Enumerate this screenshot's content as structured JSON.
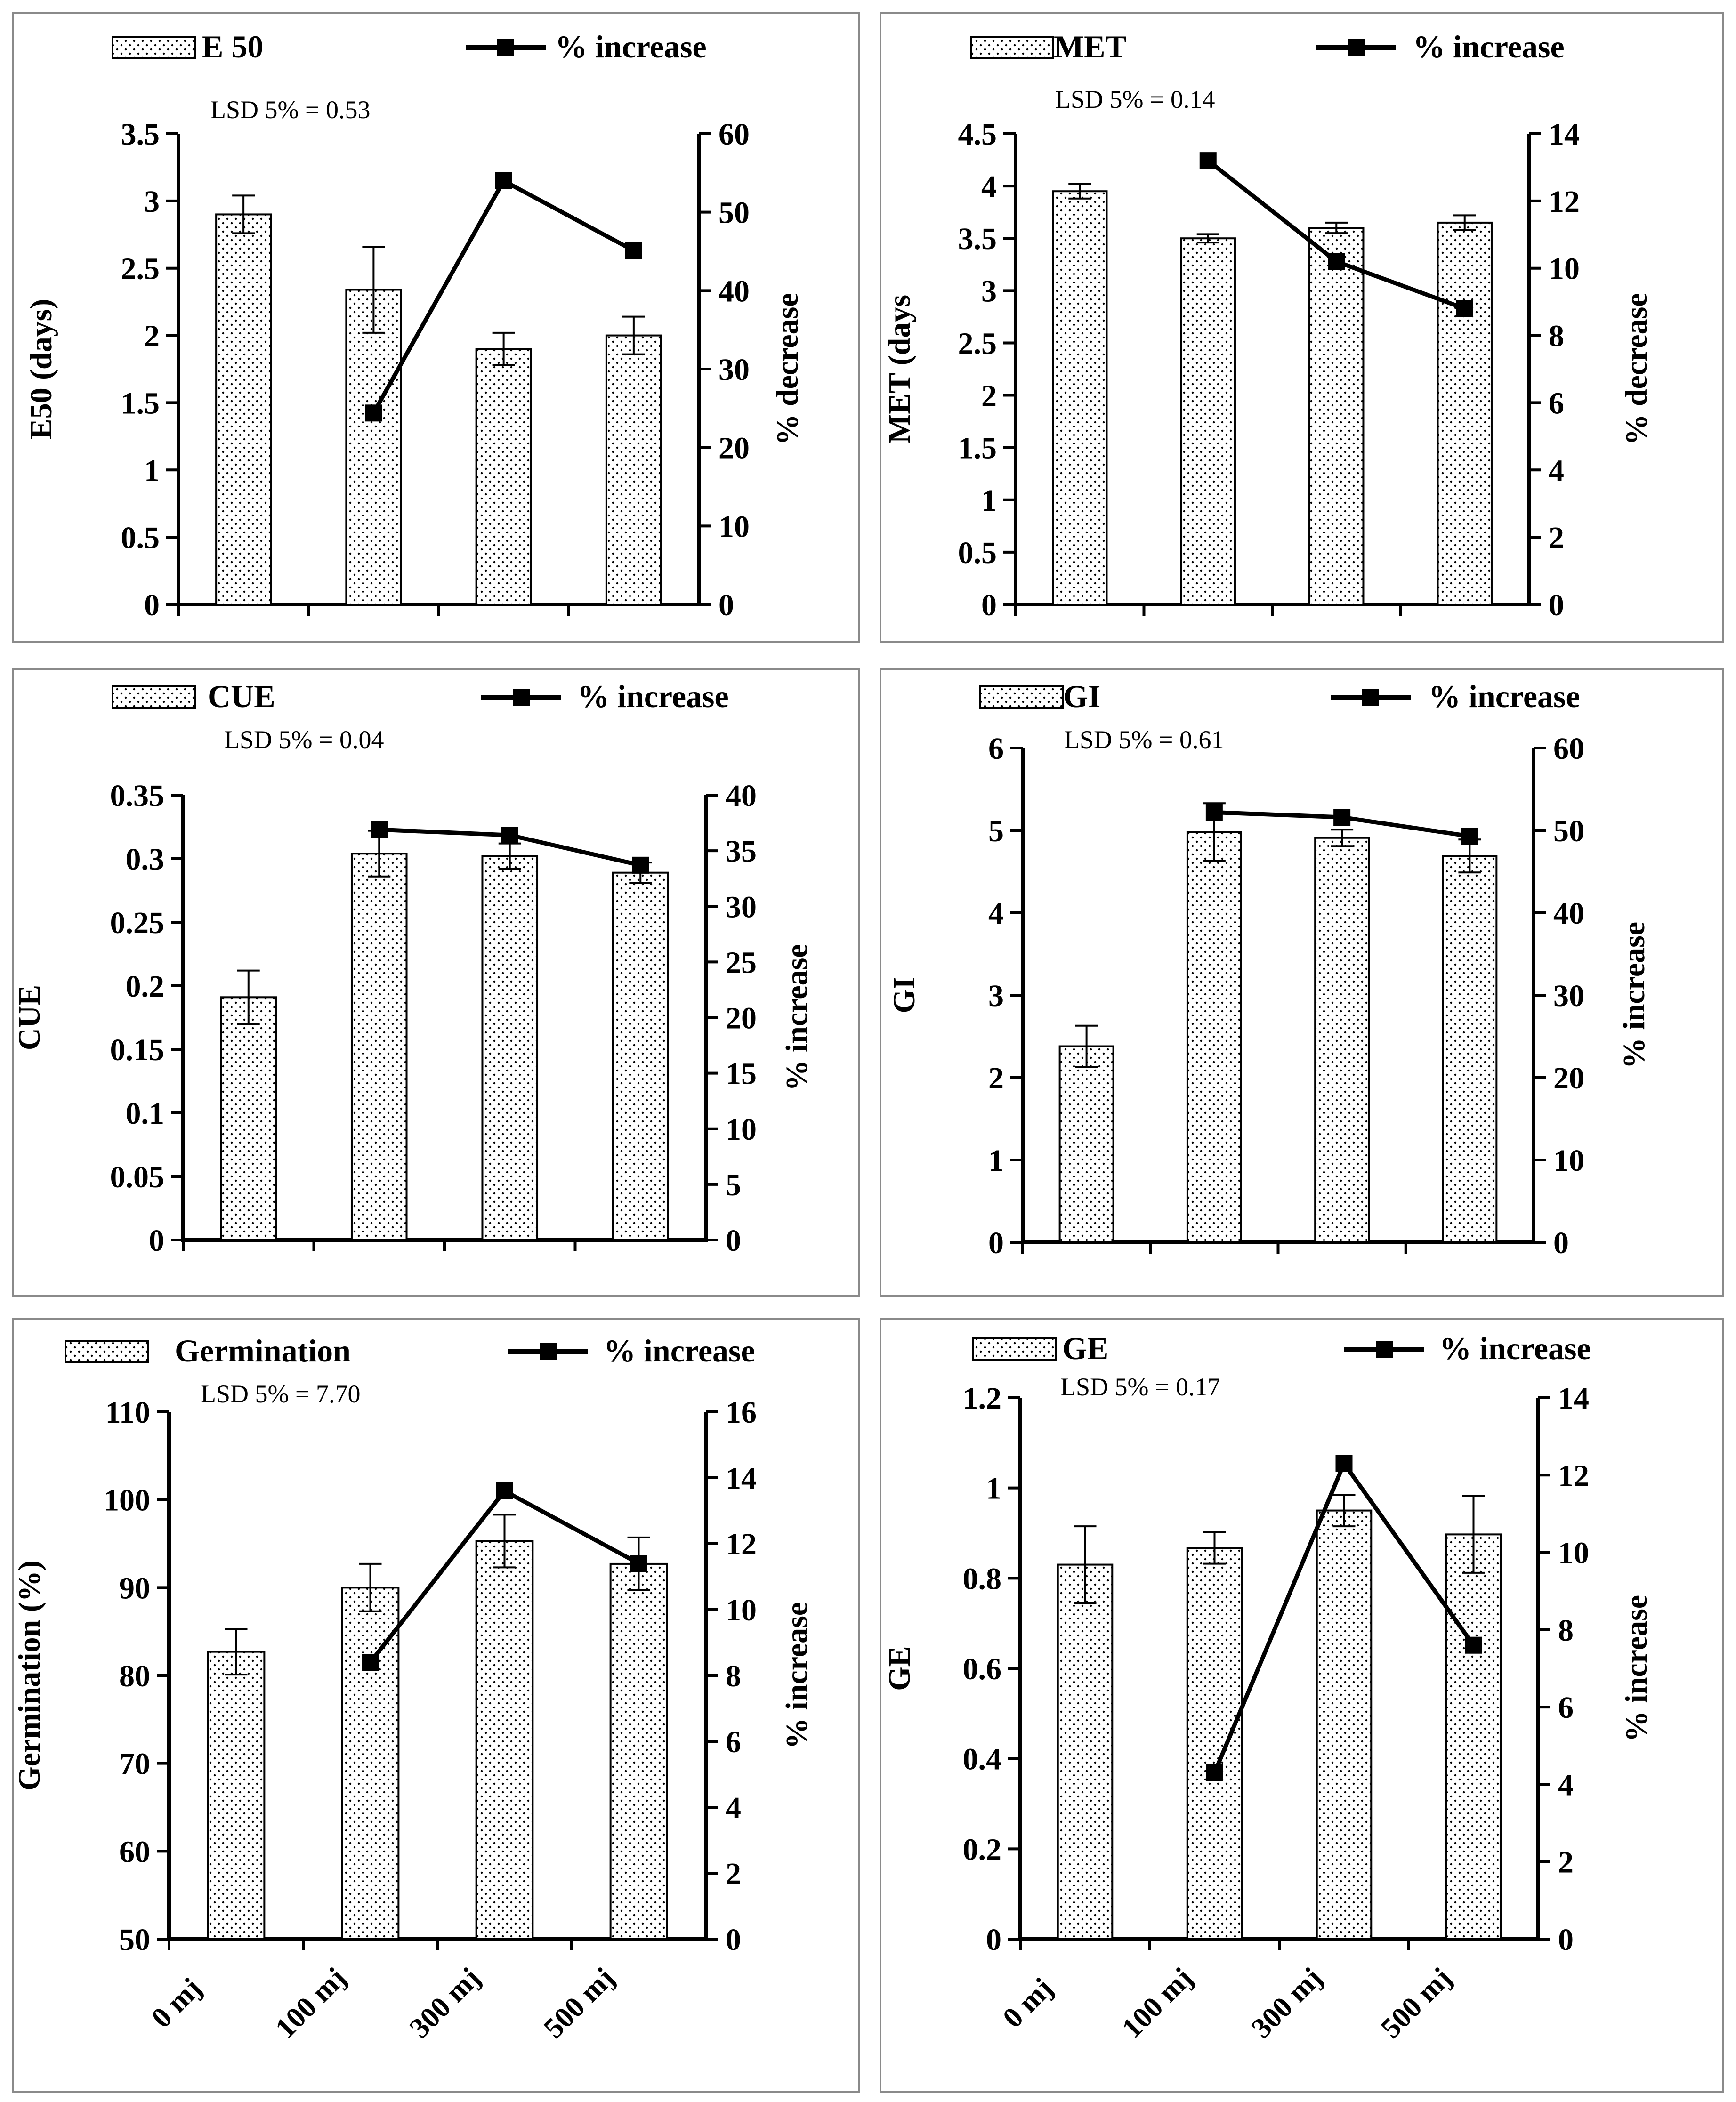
{
  "chart_data": [
    {
      "type": "bar",
      "id": "e50",
      "categories": [
        "0 mj",
        "100 mj",
        "300 mj",
        "500 mj"
      ],
      "bar_series": {
        "name": "E 50",
        "values": [
          2.9,
          2.34,
          1.9,
          2.0
        ],
        "errors": [
          0.14,
          0.32,
          0.12,
          0.14
        ]
      },
      "line_series": {
        "name": "% increase",
        "values": [
          null,
          24.4,
          54.0,
          45.1
        ]
      },
      "lsd_text": "LSD 5% = 0.53",
      "ylabel": "E50 (days)",
      "y2label": "% decrease",
      "ylim": [
        0,
        3.5
      ],
      "yticks": [
        "0",
        "0.5",
        "1",
        "1.5",
        "2",
        "2.5",
        "3",
        "3.5"
      ],
      "y2lim": [
        0,
        60
      ],
      "y2ticks": [
        "0",
        "10",
        "20",
        "30",
        "40",
        "50",
        "60"
      ],
      "show_xlabels": false,
      "pattern": "dots"
    },
    {
      "type": "bar",
      "id": "met",
      "categories": [
        "0 mj",
        "100 mj",
        "300 mj",
        "500 mj"
      ],
      "bar_series": {
        "name": "MET",
        "values": [
          3.95,
          3.5,
          3.6,
          3.65
        ],
        "errors": [
          0.07,
          0.04,
          0.05,
          0.07
        ]
      },
      "line_series": {
        "name": "% increase",
        "values": [
          null,
          13.2,
          10.2,
          8.8
        ]
      },
      "lsd_text": "LSD 5% = 0.14",
      "ylabel": "MET (days",
      "y2label": "% decrease",
      "ylim": [
        0,
        4.5
      ],
      "yticks": [
        "0",
        "0.5",
        "1",
        "1.5",
        "2",
        "2.5",
        "3",
        "3.5",
        "4",
        "4.5"
      ],
      "y2lim": [
        0,
        14
      ],
      "y2ticks": [
        "0",
        "2",
        "4",
        "6",
        "8",
        "10",
        "12",
        "14"
      ],
      "show_xlabels": false,
      "pattern": "dots"
    },
    {
      "type": "bar",
      "id": "cue",
      "categories": [
        "0 mj",
        "100 mj",
        "300 mj",
        "500 mj"
      ],
      "bar_series": {
        "name": "CUE",
        "values": [
          0.191,
          0.304,
          0.302,
          0.289
        ],
        "errors": [
          0.021,
          0.018,
          0.01,
          0.008
        ]
      },
      "line_series": {
        "name": "% increase",
        "values": [
          null,
          36.9,
          36.4,
          33.7
        ]
      },
      "lsd_text": "LSD 5% = 0.04",
      "ylabel": "CUE",
      "y2label": "% increase",
      "ylim": [
        0,
        0.35
      ],
      "yticks": [
        "0",
        "0.05",
        "0.1",
        "0.15",
        "0.2",
        "0.25",
        "0.3",
        "0.35"
      ],
      "y2lim": [
        0,
        40
      ],
      "y2ticks": [
        "0",
        "5",
        "10",
        "15",
        "20",
        "25",
        "30",
        "35",
        "40"
      ],
      "show_xlabels": false,
      "pattern": "dots"
    },
    {
      "type": "bar",
      "id": "gi",
      "categories": [
        "0 mj",
        "100 mj",
        "300 mj",
        "500 mj"
      ],
      "bar_series": {
        "name": "GI",
        "values": [
          2.38,
          4.98,
          4.91,
          4.69
        ],
        "errors": [
          0.25,
          0.35,
          0.1,
          0.2
        ]
      },
      "line_series": {
        "name": "% increase",
        "values": [
          null,
          52.2,
          51.6,
          49.3
        ]
      },
      "lsd_text": "LSD 5% = 0.61",
      "ylabel": "GI",
      "y2label": "% increase",
      "ylim": [
        0,
        6
      ],
      "yticks": [
        "0",
        "1",
        "2",
        "3",
        "4",
        "5",
        "6"
      ],
      "y2lim": [
        0,
        60
      ],
      "y2ticks": [
        "0",
        "10",
        "20",
        "30",
        "40",
        "50",
        "60"
      ],
      "show_xlabels": false,
      "pattern": "dots"
    },
    {
      "type": "bar",
      "id": "germination",
      "categories": [
        "0 mj",
        "100 mj",
        "300 mj",
        "500 mj"
      ],
      "bar_series": {
        "name": "Germination",
        "values": [
          82.7,
          90.0,
          95.3,
          92.7
        ],
        "errors": [
          2.6,
          2.7,
          3.0,
          3.0
        ]
      },
      "line_series": {
        "name": "% increase",
        "values": [
          null,
          8.4,
          13.6,
          11.4
        ]
      },
      "lsd_text": "LSD 5% = 7.70",
      "ylabel": "Germination  (%)",
      "y2label": "% increase",
      "ylim": [
        50,
        110
      ],
      "yticks": [
        "50",
        "60",
        "70",
        "80",
        "90",
        "100",
        "110"
      ],
      "y2lim": [
        0,
        16
      ],
      "y2ticks": [
        "0",
        "2",
        "4",
        "6",
        "8",
        "10",
        "12",
        "14",
        "16"
      ],
      "show_xlabels": true,
      "pattern": "dots"
    },
    {
      "type": "bar",
      "id": "ge",
      "categories": [
        "0 mj",
        "100 mj",
        "300 mj",
        "500 mj"
      ],
      "bar_series": {
        "name": "GE",
        "values": [
          0.83,
          0.867,
          0.95,
          0.897
        ],
        "errors": [
          0.085,
          0.035,
          0.035,
          0.085
        ]
      },
      "line_series": {
        "name": "% increase",
        "values": [
          null,
          4.3,
          12.3,
          7.6
        ]
      },
      "lsd_text": "LSD 5% = 0.17",
      "ylabel": "GE",
      "y2label": "% increase",
      "ylim": [
        0,
        1.2
      ],
      "yticks": [
        "0",
        "0.2",
        "0.4",
        "0.6",
        "0.8",
        "1",
        "1.2"
      ],
      "y2lim": [
        0,
        14
      ],
      "y2ticks": [
        "0",
        "2",
        "4",
        "6",
        "8",
        "10",
        "12",
        "14"
      ],
      "show_xlabels": true,
      "pattern": "dots"
    }
  ]
}
